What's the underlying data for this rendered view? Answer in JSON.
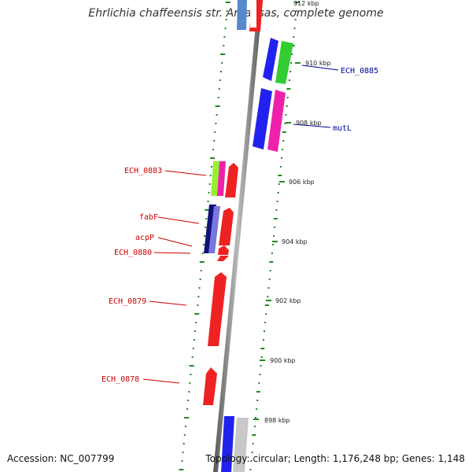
{
  "title": "Ehrlichia chaffeensis str. Arkansas, complete genome",
  "footer": {
    "accession": "Accession: NC_007799",
    "topology": "Topology: circular; Length: 1,176,248 bp; Genes: 1,148"
  },
  "ticks": [
    {
      "label": "912 kbp",
      "kbp": 912
    },
    {
      "label": "910 kbp",
      "kbp": 910
    },
    {
      "label": "908 kbp",
      "kbp": 908
    },
    {
      "label": "906 kbp",
      "kbp": 906
    },
    {
      "label": "904 kbp",
      "kbp": 904
    },
    {
      "label": "902 kbp",
      "kbp": 902
    },
    {
      "label": "900 kbp",
      "kbp": 900
    },
    {
      "label": "898 kbp",
      "kbp": 898
    }
  ],
  "genes": {
    "forward": [
      {
        "name": "ECH_0885",
        "color": "#2222ee"
      },
      {
        "name": "",
        "color": "#33cc33"
      },
      {
        "name": "mutL",
        "color": "#2222ee"
      },
      {
        "name": "",
        "color": "#ee22aa"
      },
      {
        "name": "",
        "color": "#ee2222"
      },
      {
        "name": "",
        "color": "#ee2222"
      },
      {
        "name": "",
        "color": "#ee2222"
      }
    ],
    "labels_left": [
      {
        "name": "ECH_0883",
        "color": "#cc0000"
      },
      {
        "name": "fabF",
        "color": "#cc0000"
      },
      {
        "name": "acpP",
        "color": "#cc0000"
      },
      {
        "name": "ECH_0880",
        "color": "#cc0000"
      },
      {
        "name": "ECH_0879",
        "color": "#cc0000"
      },
      {
        "name": "ECH_0878",
        "color": "#cc0000"
      }
    ],
    "labels_right": [
      {
        "name": "ECH_0885",
        "color": "#000099"
      },
      {
        "name": "mutL",
        "color": "#000099"
      }
    ]
  },
  "colors": {
    "backbone": "#888888",
    "gc_ticks": "#228822",
    "red": "#ee2222",
    "blue": "#2222ee",
    "navy": "#111177",
    "green": "#33cc33",
    "lime": "#99ee33",
    "magenta": "#ee22aa",
    "steelblue": "#5588cc",
    "slate": "#7777dd",
    "gray": "#c8c8c8"
  }
}
